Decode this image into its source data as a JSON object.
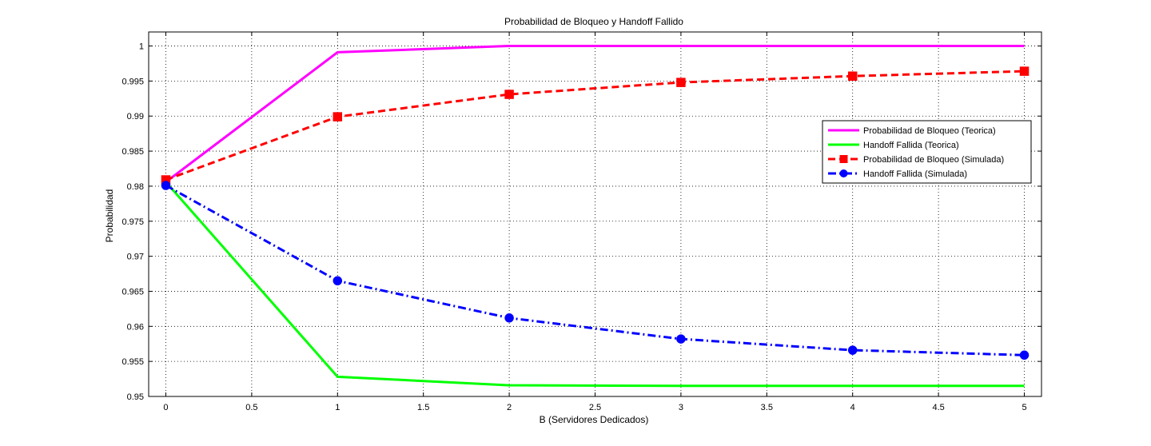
{
  "chart_data": {
    "type": "line",
    "title": "Probabilidad de Bloqueo y Handoff Fallido",
    "xlabel": "B (Servidores Dedicados)",
    "ylabel": "Probabilidad",
    "xlim": [
      -0.1,
      5.1
    ],
    "ylim": [
      0.95,
      1.002
    ],
    "x_ticks": [
      "0",
      "0.5",
      "1",
      "1.5",
      "2",
      "2.5",
      "3",
      "3.5",
      "4",
      "4.5",
      "5"
    ],
    "y_ticks": [
      "0.95",
      "0.955",
      "0.96",
      "0.965",
      "0.97",
      "0.975",
      "0.98",
      "0.985",
      "0.99",
      "0.995",
      "1"
    ],
    "grid": true,
    "legend_position": "right",
    "series": [
      {
        "name": "Probabilidad de Bloqueo (Teorica)",
        "color": "#ff00ff",
        "style": "solid",
        "marker": "none",
        "x": [
          0,
          1,
          2,
          3,
          4,
          5
        ],
        "y": [
          0.9806,
          0.9991,
          1.0,
          1.0,
          1.0,
          1.0
        ]
      },
      {
        "name": "Handoff Fallida (Teorica)",
        "color": "#00ff00",
        "style": "solid",
        "marker": "none",
        "x": [
          0,
          1,
          2,
          3,
          4,
          5
        ],
        "y": [
          0.9806,
          0.9528,
          0.9516,
          0.9515,
          0.9515,
          0.9515
        ]
      },
      {
        "name": "Probabilidad de Bloqueo (Simulada)",
        "color": "#ff0000",
        "style": "dashed",
        "marker": "square",
        "x": [
          0,
          1,
          2,
          3,
          4,
          5
        ],
        "y": [
          0.9809,
          0.9899,
          0.9931,
          0.9948,
          0.9957,
          0.9964
        ]
      },
      {
        "name": "Handoff Fallida (Simulada)",
        "color": "#0000ff",
        "style": "dashdot",
        "marker": "circle",
        "x": [
          0,
          1,
          2,
          3,
          4,
          5
        ],
        "y": [
          0.9801,
          0.9665,
          0.9612,
          0.9582,
          0.9566,
          0.9559
        ]
      }
    ]
  }
}
